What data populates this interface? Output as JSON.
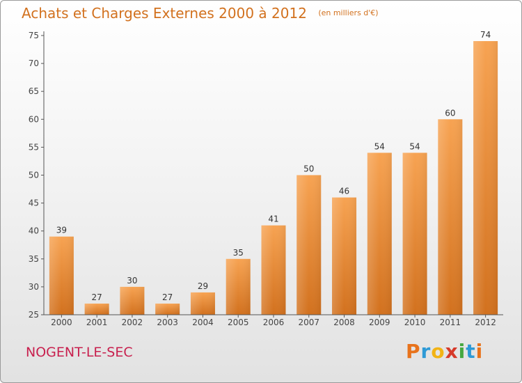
{
  "header": {
    "title": "Achats et Charges Externes 2000 à 2012",
    "subtitle": "(en milliers d'€)"
  },
  "footer": {
    "commune": "NOGENT-LE-SEC",
    "logo_letters": [
      "P",
      "r",
      "o",
      "x",
      "i",
      "t",
      "i"
    ],
    "logo_colors": [
      "#e8731c",
      "#2e9ad6",
      "#f2b315",
      "#d63a2a",
      "#46a840",
      "#2e9ad6",
      "#e8731c"
    ]
  },
  "chart_data": {
    "type": "bar",
    "categories": [
      "2000",
      "2001",
      "2002",
      "2003",
      "2004",
      "2005",
      "2006",
      "2007",
      "2008",
      "2009",
      "2010",
      "2011",
      "2012"
    ],
    "values": [
      39,
      27,
      30,
      27,
      29,
      35,
      41,
      50,
      46,
      54,
      54,
      60,
      74
    ],
    "title": "Achats et Charges Externes 2000 à 2012",
    "ylim": [
      25,
      75
    ],
    "yticks": [
      25,
      30,
      35,
      40,
      45,
      50,
      55,
      60,
      65,
      70,
      75
    ],
    "grid": false,
    "bar_color_top": "#f7a352",
    "bar_color_bottom": "#d2711e"
  }
}
